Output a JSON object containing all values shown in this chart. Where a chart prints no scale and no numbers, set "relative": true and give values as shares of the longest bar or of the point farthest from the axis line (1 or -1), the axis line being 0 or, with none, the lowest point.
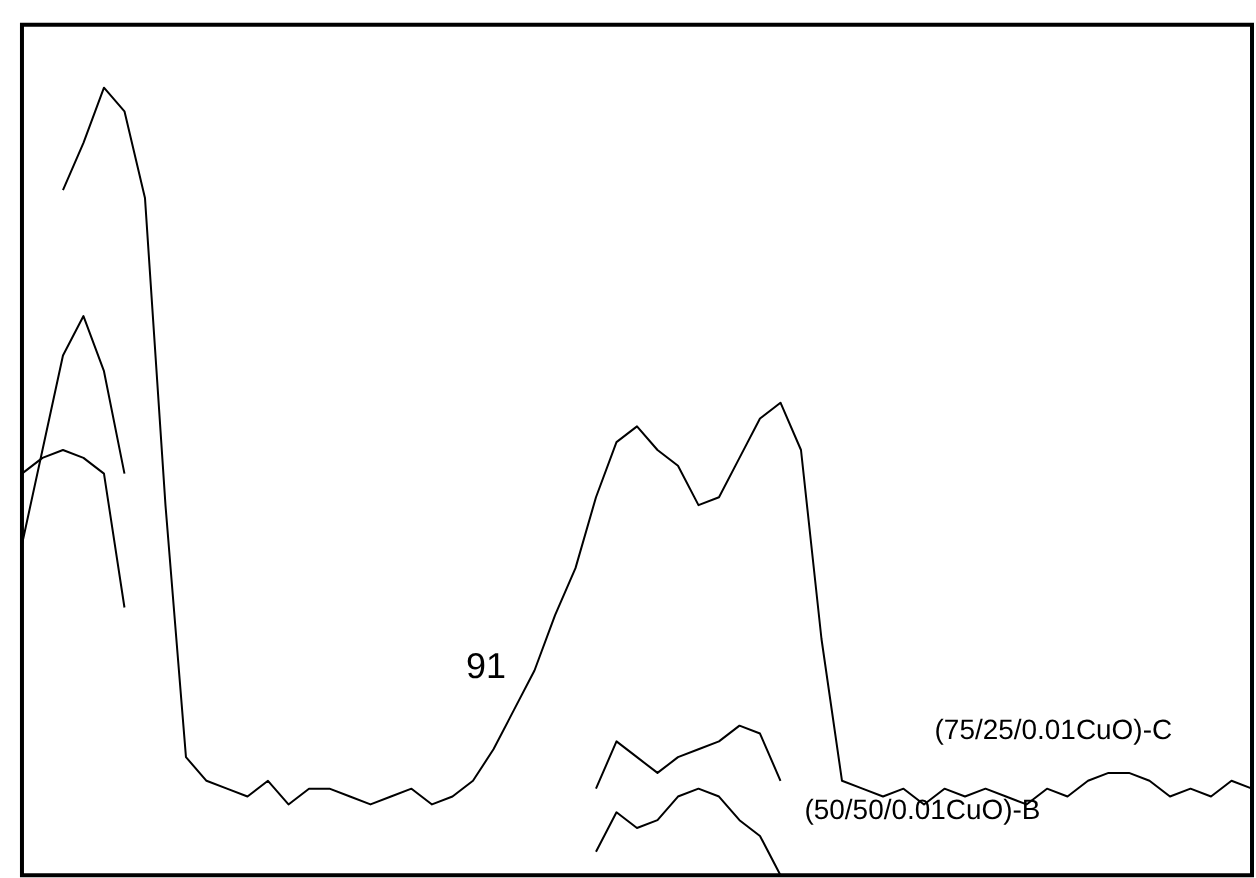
{
  "chart_data": {
    "type": "line",
    "relative": true,
    "categories": [
      null,
      null,
      null,
      null,
      null,
      null,
      null,
      null,
      null,
      null,
      null,
      null,
      null,
      null,
      null,
      null,
      null,
      null,
      null,
      null,
      null,
      null,
      null,
      null,
      null,
      null,
      null,
      null,
      null,
      null,
      null,
      null,
      null,
      null,
      null,
      null,
      null,
      null,
      null,
      null,
      null,
      null,
      null,
      null,
      null,
      null,
      null,
      null,
      null,
      null,
      null,
      null,
      null,
      null,
      null,
      null,
      null,
      null,
      null,
      null,
      null
    ],
    "series": [
      {
        "name": "(75/25/0.01CuO)-C",
        "color": "#000000",
        "values": [
          null,
          null,
          0.87,
          0.93,
          1.0,
          0.97,
          0.86,
          0.47,
          0.15,
          0.12,
          0.11,
          0.1,
          0.12,
          0.09,
          0.11,
          0.11,
          0.1,
          0.09,
          0.1,
          0.11,
          0.09,
          0.1,
          0.12,
          0.16,
          0.21,
          0.26,
          0.33,
          0.39,
          0.48,
          0.55,
          0.57,
          0.54,
          0.52,
          0.47,
          0.48,
          0.53,
          0.58,
          0.6,
          0.54,
          0.3,
          0.12,
          0.11,
          0.1,
          0.11,
          0.09,
          0.11,
          0.1,
          0.11,
          0.1,
          0.09,
          0.11,
          0.1,
          0.12,
          0.13,
          0.13,
          0.12,
          0.1,
          0.11,
          0.1,
          0.12,
          0.11
        ]
      },
      {
        "name": "(50/50/0.01CuO)-B",
        "color": "#000000",
        "values": [
          0.42,
          0.54,
          0.66,
          0.71,
          0.64,
          0.51,
          null,
          null,
          null,
          null,
          null,
          null,
          null,
          null,
          null,
          null,
          null,
          null,
          null,
          null,
          null,
          null,
          null,
          null,
          null,
          null,
          null,
          null,
          0.11,
          0.17,
          0.15,
          0.13,
          0.15,
          0.16,
          0.17,
          0.19,
          0.18,
          0.12,
          null,
          null,
          null,
          null,
          null,
          null,
          null,
          null,
          null,
          null,
          null,
          null,
          null,
          null,
          null,
          null,
          null,
          null,
          null,
          null,
          null,
          null,
          null
        ]
      },
      {
        "color": "#000000",
        "values": [
          0.51,
          0.53,
          0.54,
          0.53,
          0.51,
          0.34,
          null,
          null,
          null,
          null,
          null,
          null,
          null,
          null,
          null,
          null,
          null,
          null,
          null,
          null,
          null,
          null,
          null,
          null,
          null,
          null,
          null,
          null,
          0.03,
          0.08,
          0.06,
          0.07,
          0.1,
          0.11,
          0.1,
          0.07,
          0.05,
          0.0,
          null,
          null,
          null,
          null,
          null,
          null,
          null,
          null,
          null,
          null,
          null,
          null,
          null,
          null,
          null,
          null,
          null,
          null,
          null,
          null,
          null,
          null,
          null
        ]
      }
    ],
    "annotations": [
      "91"
    ]
  }
}
